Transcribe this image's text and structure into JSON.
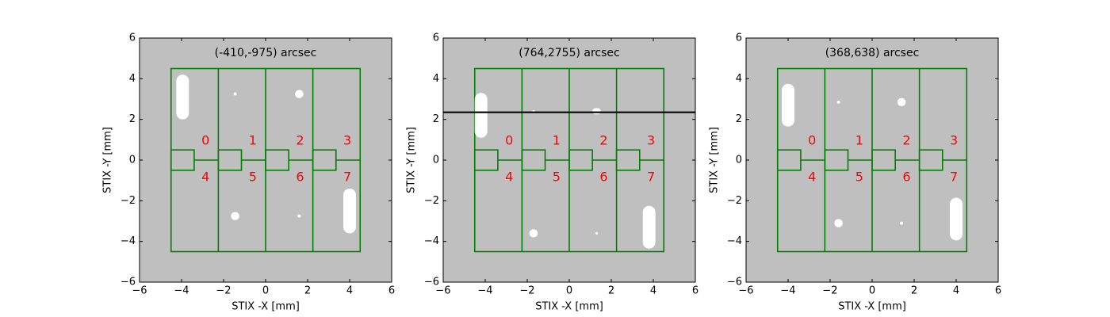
{
  "chart_data": [
    {
      "type": "detector",
      "title": "(-410,-975) arcsec",
      "xlabel": "STIX -X [mm]",
      "ylabel": "STIX -Y [mm]",
      "xlim": [
        -6,
        6
      ],
      "ylim": [
        -6,
        6
      ],
      "xticks": [
        {
          "value": -6,
          "label": "−6"
        },
        {
          "value": -4,
          "label": "−4"
        },
        {
          "value": -2,
          "label": "−2"
        },
        0,
        2,
        4,
        6
      ],
      "yticks": [
        {
          "value": -6,
          "label": "−6"
        },
        {
          "value": -4,
          "label": "−4"
        },
        {
          "value": -2,
          "label": "−2"
        },
        0,
        2,
        4,
        6
      ],
      "outline_x": [
        -4.5,
        -2.25,
        0,
        2.25,
        4.5
      ],
      "outline_y": [
        -4.5,
        4.5
      ],
      "small_pixel": [
        1.1,
        0.5
      ],
      "pixel_labels": [
        "0",
        "1",
        "2",
        "3",
        "4",
        "5",
        "6",
        "7"
      ],
      "spots": [
        {
          "x": -3.95,
          "y": 3.1,
          "w": 0.6,
          "h": 2.2
        },
        {
          "x": -1.45,
          "y": 3.25,
          "w": 0.15,
          "h": 0.15
        },
        {
          "x": 1.6,
          "y": 3.25,
          "w": 0.4,
          "h": 0.4
        },
        {
          "x": -1.45,
          "y": -2.75,
          "w": 0.4,
          "h": 0.4
        },
        {
          "x": 1.6,
          "y": -2.75,
          "w": 0.15,
          "h": 0.15
        },
        {
          "x": 4.0,
          "y": -2.5,
          "w": 0.6,
          "h": 2.2
        }
      ]
    },
    {
      "type": "detector",
      "title": "(764,2755) arcsec",
      "xlabel": "STIX -X [mm]",
      "ylabel": "STIX -Y [mm]",
      "xlim": [
        -6,
        6
      ],
      "ylim": [
        -6,
        6
      ],
      "xticks": [
        {
          "value": -6,
          "label": "−6"
        },
        {
          "value": -4,
          "label": "−4"
        },
        {
          "value": -2,
          "label": "−2"
        },
        0,
        2,
        4,
        6
      ],
      "yticks": [
        {
          "value": -6,
          "label": "−6"
        },
        {
          "value": -4,
          "label": "−4"
        },
        {
          "value": -2,
          "label": "−2"
        },
        0,
        2,
        4,
        6
      ],
      "outline_x": [
        -4.5,
        -2.25,
        0,
        2.25,
        4.5
      ],
      "outline_y": [
        -4.5,
        4.5
      ],
      "small_pixel": [
        1.1,
        0.5
      ],
      "pixel_labels": [
        "0",
        "1",
        "2",
        "3",
        "4",
        "5",
        "6",
        "7"
      ],
      "hline": 2.35,
      "spots": [
        {
          "x": -4.2,
          "y": 2.2,
          "w": 0.6,
          "h": 2.2
        },
        {
          "x": -1.7,
          "y": 2.4,
          "w": 0.12,
          "h": 0.12
        },
        {
          "x": 1.3,
          "y": 2.4,
          "w": 0.4,
          "h": 0.3
        },
        {
          "x": -1.7,
          "y": -3.6,
          "w": 0.4,
          "h": 0.4
        },
        {
          "x": 1.3,
          "y": -3.6,
          "w": 0.12,
          "h": 0.12
        },
        {
          "x": 3.8,
          "y": -3.3,
          "w": 0.6,
          "h": 2.1
        }
      ]
    },
    {
      "type": "detector",
      "title": "(368,638) arcsec",
      "xlabel": "STIX -X [mm]",
      "ylabel": "STIX -Y [mm]",
      "xlim": [
        -6,
        6
      ],
      "ylim": [
        -6,
        6
      ],
      "xticks": [
        {
          "value": -6,
          "label": "−6"
        },
        {
          "value": -4,
          "label": "−4"
        },
        {
          "value": -2,
          "label": "−2"
        },
        0,
        2,
        4,
        6
      ],
      "yticks": [
        {
          "value": -6,
          "label": "−6"
        },
        {
          "value": -4,
          "label": "−4"
        },
        {
          "value": -2,
          "label": "−2"
        },
        0,
        2,
        4,
        6
      ],
      "outline_x": [
        -4.5,
        -2.25,
        0,
        2.25,
        4.5
      ],
      "outline_y": [
        -4.5,
        4.5
      ],
      "small_pixel": [
        1.1,
        0.5
      ],
      "pixel_labels": [
        "0",
        "1",
        "2",
        "3",
        "4",
        "5",
        "6",
        "7"
      ],
      "spots": [
        {
          "x": -4.0,
          "y": 2.7,
          "w": 0.6,
          "h": 2.1
        },
        {
          "x": -1.6,
          "y": 2.85,
          "w": 0.15,
          "h": 0.15
        },
        {
          "x": 1.4,
          "y": 2.85,
          "w": 0.4,
          "h": 0.4
        },
        {
          "x": -1.6,
          "y": -3.1,
          "w": 0.4,
          "h": 0.4
        },
        {
          "x": 1.4,
          "y": -3.1,
          "w": 0.15,
          "h": 0.15
        },
        {
          "x": 4.0,
          "y": -2.9,
          "w": 0.6,
          "h": 2.1
        }
      ]
    }
  ]
}
